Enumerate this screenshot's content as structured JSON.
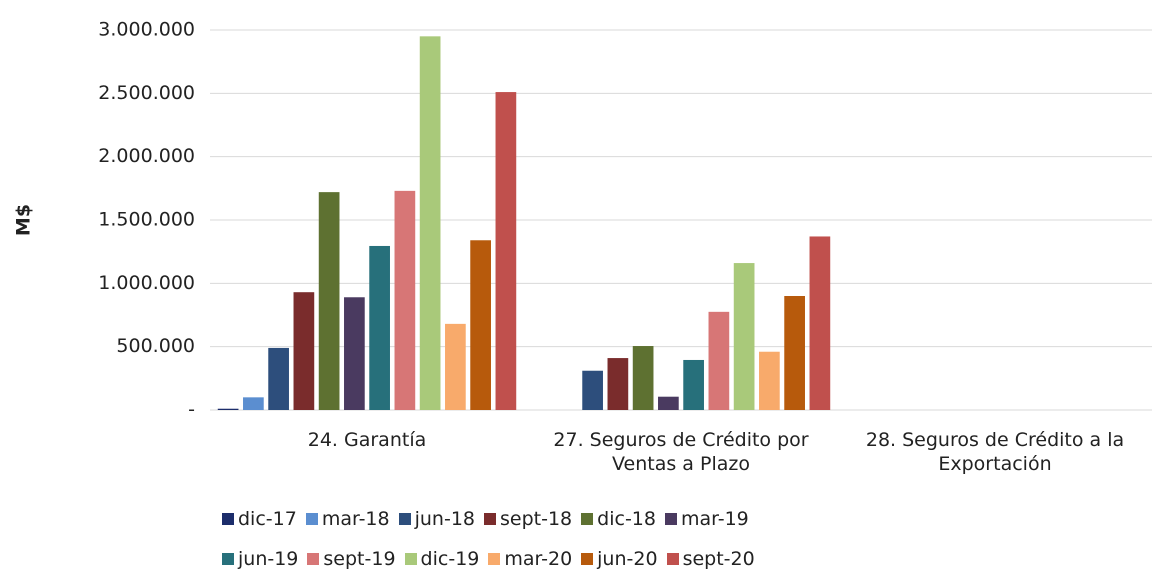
{
  "chart_data": {
    "type": "bar",
    "y_label": "M$",
    "categories": [
      "24. Garantía",
      "27. Seguros de Crédito por Ventas a Plazo",
      "28. Seguros de Crédito a la Exportación"
    ],
    "series": [
      {
        "name": "dic-17",
        "color": "#1c2d6b",
        "values": [
          10000,
          0,
          0
        ]
      },
      {
        "name": "mar-18",
        "color": "#5b8ed0",
        "values": [
          100000,
          0,
          0
        ]
      },
      {
        "name": "jun-18",
        "color": "#2d4e7c",
        "values": [
          490000,
          310000,
          0
        ]
      },
      {
        "name": "sept-18",
        "color": "#7a2c2c",
        "values": [
          930000,
          410000,
          0
        ]
      },
      {
        "name": "dic-18",
        "color": "#5e7131",
        "values": [
          1720000,
          505000,
          0
        ]
      },
      {
        "name": "mar-19",
        "color": "#4a3a60",
        "values": [
          890000,
          105000,
          0
        ]
      },
      {
        "name": "jun-19",
        "color": "#27707b",
        "values": [
          1295000,
          395000,
          0
        ]
      },
      {
        "name": "sept-19",
        "color": "#d77676",
        "values": [
          1730000,
          775000,
          0
        ]
      },
      {
        "name": "dic-19",
        "color": "#a9c97a",
        "values": [
          2950000,
          1160000,
          0
        ]
      },
      {
        "name": "mar-20",
        "color": "#f8aa6b",
        "values": [
          680000,
          460000,
          0
        ]
      },
      {
        "name": "jun-20",
        "color": "#b75a0c",
        "values": [
          1340000,
          900000,
          0
        ]
      },
      {
        "name": "sept-20",
        "color": "#c0504d",
        "values": [
          2510000,
          1370000,
          0
        ]
      }
    ],
    "ylim": [
      0,
      3000000
    ],
    "yticks": [
      {
        "value": 0,
        "label": "-"
      },
      {
        "value": 500000,
        "label": "500.000"
      },
      {
        "value": 1000000,
        "label": "1.000.000"
      },
      {
        "value": 1500000,
        "label": "1.500.000"
      },
      {
        "value": 2000000,
        "label": "2.000.000"
      },
      {
        "value": 2500000,
        "label": "2.500.000"
      },
      {
        "value": 3000000,
        "label": "3.000.000"
      }
    ],
    "grid": true
  }
}
